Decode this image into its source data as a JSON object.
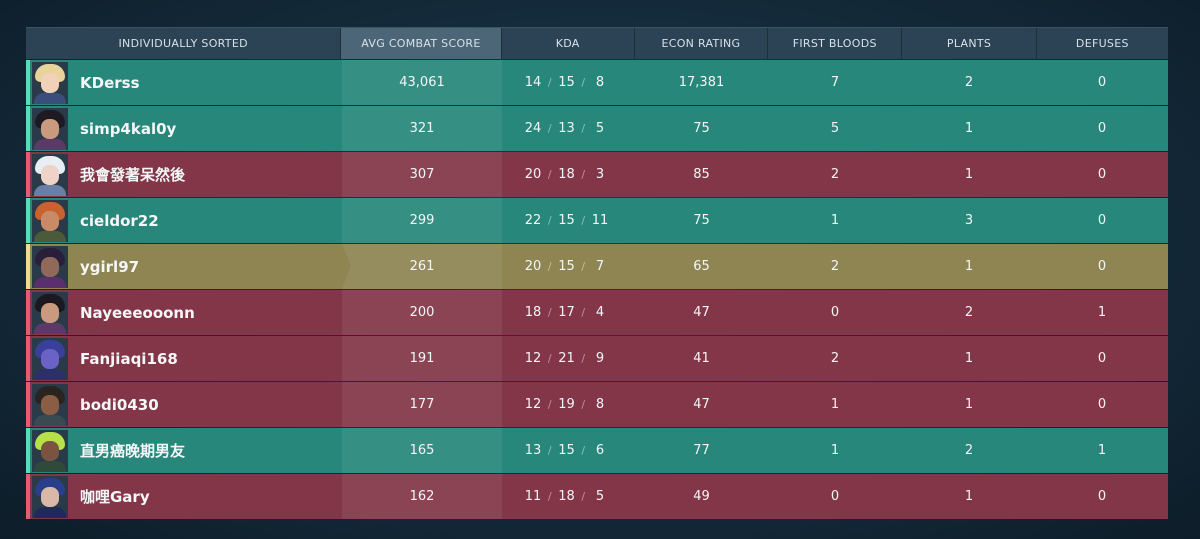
{
  "headers": {
    "name": "INDIVIDUALLY SORTED",
    "acs": "AVG COMBAT SCORE",
    "kda": "KDA",
    "econ": "ECON RATING",
    "first_bloods": "FIRST BLOODS",
    "plants": "PLANTS",
    "defuses": "DEFUSES"
  },
  "kda_separator": "/",
  "players": [
    {
      "name": "KDerss",
      "team": "a",
      "acs": "43,061",
      "k": "14",
      "d": "15",
      "a": "8",
      "econ": "17,381",
      "fb": "7",
      "plants": "2",
      "defuses": "0",
      "avatar_icon": "agent-portrait-icon",
      "colors": {
        "hair": "#e8d49a",
        "face": "#f1d2b8",
        "body": "#3b4d7a"
      }
    },
    {
      "name": "simp4kal0y",
      "team": "a",
      "acs": "321",
      "k": "24",
      "d": "13",
      "a": "5",
      "econ": "75",
      "fb": "5",
      "plants": "1",
      "defuses": "0",
      "avatar_icon": "agent-portrait-icon",
      "colors": {
        "hair": "#1e1a24",
        "face": "#c99a7e",
        "body": "#5b3a6a"
      }
    },
    {
      "name": "我會發著呆然後",
      "team": "b",
      "acs": "307",
      "k": "20",
      "d": "18",
      "a": "3",
      "econ": "85",
      "fb": "2",
      "plants": "1",
      "defuses": "0",
      "avatar_icon": "agent-portrait-icon",
      "colors": {
        "hair": "#e9eef4",
        "face": "#efd3c8",
        "body": "#6a7fa8"
      }
    },
    {
      "name": "cieldor22",
      "team": "a",
      "acs": "299",
      "k": "22",
      "d": "15",
      "a": "11",
      "econ": "75",
      "fb": "1",
      "plants": "3",
      "defuses": "0",
      "avatar_icon": "agent-portrait-icon",
      "colors": {
        "hair": "#c8622e",
        "face": "#c98a68",
        "body": "#4a5a3a"
      }
    },
    {
      "name": "ygirl97",
      "team": "self",
      "acs": "261",
      "k": "20",
      "d": "15",
      "a": "7",
      "econ": "65",
      "fb": "2",
      "plants": "1",
      "defuses": "0",
      "avatar_icon": "agent-portrait-icon",
      "colors": {
        "hair": "#2a1f3a",
        "face": "#8f6a5a",
        "body": "#5a2f6e"
      }
    },
    {
      "name": "Nayeeeooonn",
      "team": "b",
      "acs": "200",
      "k": "18",
      "d": "17",
      "a": "4",
      "econ": "47",
      "fb": "0",
      "plants": "2",
      "defuses": "1",
      "avatar_icon": "agent-portrait-icon",
      "colors": {
        "hair": "#1c1820",
        "face": "#c99a7e",
        "body": "#5b3a6a"
      }
    },
    {
      "name": "Fanjiaqi168",
      "team": "b",
      "acs": "191",
      "k": "12",
      "d": "21",
      "a": "9",
      "econ": "41",
      "fb": "2",
      "plants": "1",
      "defuses": "0",
      "avatar_icon": "agent-portrait-icon",
      "colors": {
        "hair": "#3a3f9a",
        "face": "#6b62c8",
        "body": "#2c2f6a"
      }
    },
    {
      "name": "bodi0430",
      "team": "b",
      "acs": "177",
      "k": "12",
      "d": "19",
      "a": "8",
      "econ": "47",
      "fb": "1",
      "plants": "1",
      "defuses": "0",
      "avatar_icon": "agent-portrait-icon",
      "colors": {
        "hair": "#2a2420",
        "face": "#8a5e44",
        "body": "#3a4a52"
      }
    },
    {
      "name": "直男癌晚期男友",
      "team": "a",
      "acs": "165",
      "k": "13",
      "d": "15",
      "a": "6",
      "econ": "77",
      "fb": "1",
      "plants": "2",
      "defuses": "1",
      "avatar_icon": "agent-portrait-icon",
      "colors": {
        "hair": "#b8e04a",
        "face": "#7a5440",
        "body": "#2f4a3a"
      }
    },
    {
      "name": "咖哩Gary",
      "team": "b",
      "acs": "162",
      "k": "11",
      "d": "18",
      "a": "5",
      "econ": "49",
      "fb": "0",
      "plants": "1",
      "defuses": "0",
      "avatar_icon": "agent-portrait-icon",
      "colors": {
        "hair": "#2a3f8a",
        "face": "#d9b8a8",
        "body": "#1f2a5a"
      }
    }
  ]
}
